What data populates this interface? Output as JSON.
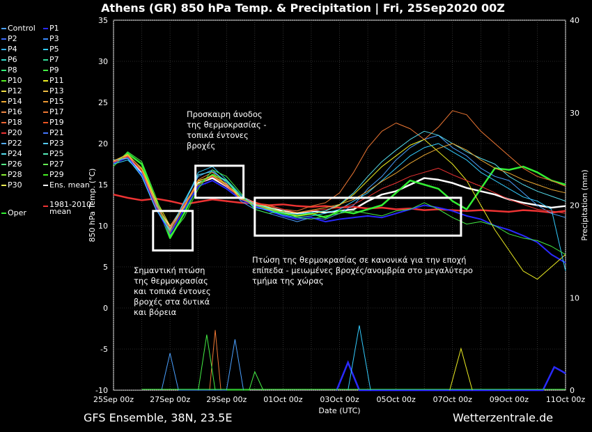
{
  "title": "Athens  (GR)  850 hPa Temp. & Precipitation | Fri, 25Sep2020 00Z",
  "footer": {
    "left": "GFS Ensemble, 38N, 23.5E",
    "right": "Wetterzentrale.de"
  },
  "legend": [
    {
      "label": "Control",
      "color": "#4aa0ff"
    },
    {
      "label": "P1",
      "color": "#2a2aff"
    },
    {
      "label": "P2",
      "color": "#3a6aff"
    },
    {
      "label": "P3",
      "color": "#3a8aff"
    },
    {
      "label": "P4",
      "color": "#33b3ff"
    },
    {
      "label": "P5",
      "color": "#33ccff"
    },
    {
      "label": "P6",
      "color": "#33ddcc"
    },
    {
      "label": "P7",
      "color": "#33dd99"
    },
    {
      "label": "P8",
      "color": "#33ee77"
    },
    {
      "label": "P9",
      "color": "#44ee44"
    },
    {
      "label": "P10",
      "color": "#55ee22"
    },
    {
      "label": "P11",
      "color": "#eeee22"
    },
    {
      "label": "P12",
      "color": "#eedd44"
    },
    {
      "label": "P13",
      "color": "#eebb44"
    },
    {
      "label": "P14",
      "color": "#eeaa33"
    },
    {
      "label": "P15",
      "color": "#ee9933"
    },
    {
      "label": "P16",
      "color": "#ee8844"
    },
    {
      "label": "P17",
      "color": "#ee7733"
    },
    {
      "label": "P18",
      "color": "#ee6633"
    },
    {
      "label": "P19",
      "color": "#ee5522"
    },
    {
      "label": "P20",
      "color": "#ee3333"
    },
    {
      "label": "P21",
      "color": "#4477ff"
    },
    {
      "label": "P22",
      "color": "#55aaff"
    },
    {
      "label": "P23",
      "color": "#55ccff"
    },
    {
      "label": "P24",
      "color": "#55ddee"
    },
    {
      "label": "P25",
      "color": "#55eebb"
    },
    {
      "label": "P26",
      "color": "#55ee88"
    },
    {
      "label": "P27",
      "color": "#66ee55"
    },
    {
      "label": "P28",
      "color": "#88ee33"
    },
    {
      "label": "P29",
      "color": "#44ee22"
    },
    {
      "label": "P30",
      "color": "#eeee55"
    },
    {
      "label": "Ens. mean",
      "color": "#ffffff"
    },
    {
      "label": "Oper",
      "color": "#33ee33"
    },
    {
      "label": "1981-2010\nmean",
      "color": "#ee3333"
    }
  ],
  "annotations": [
    "Προσκαιρη άνοδος\nτης θερμοκρασίας -\nτοπικά έντονες\nβροχές",
    "Σημαντική πτώση\nτης θερμοκρασίας\nκαι τοπικά έντονες\nβροχές στα δυτικά\nκαι βόρεια",
    "Πτώση της θερμοκρασίας σε κανονικά για την εποχή\nεπίπεδα - μειωμένες βροχές/ανομβρία στο μεγαλύτερο\nτμήμα της χώρας"
  ],
  "chart_data": {
    "type": "line",
    "ylabel": "850 hPa Temp. (°C)",
    "y2label": "Precipitation (mm)",
    "xlabel": "Date (UTC)",
    "ylim": [
      -10,
      35
    ],
    "y2lim": [
      0,
      40
    ],
    "yticks": [
      -10,
      -5,
      0,
      5,
      10,
      15,
      20,
      25,
      30,
      35
    ],
    "y2ticks": [
      0,
      10,
      20,
      30,
      40
    ],
    "x_range_days": [
      0,
      16
    ],
    "xticks": [
      {
        "day": 0,
        "label": "25Sep 00z"
      },
      {
        "day": 2,
        "label": "27Sep 00z"
      },
      {
        "day": 4,
        "label": "29Sep 00z"
      },
      {
        "day": 6,
        "label": "01Oct 00z"
      },
      {
        "day": 8,
        "label": "03Oct 00z"
      },
      {
        "day": 10,
        "label": "05Oct 00z"
      },
      {
        "day": 12,
        "label": "07Oct 00z"
      },
      {
        "day": 14,
        "label": "09Oct 00z"
      },
      {
        "day": 16,
        "label": "11Oct 00z"
      }
    ],
    "grid": true,
    "series": [
      {
        "name": "Ens. mean",
        "color": "#ffffff",
        "x": [
          0,
          0.5,
          1,
          1.5,
          2,
          2.5,
          3,
          3.5,
          4,
          4.5,
          5,
          5.5,
          6,
          6.5,
          7,
          7.5,
          8,
          8.5,
          9,
          9.5,
          10,
          10.5,
          11,
          11.5,
          12,
          12.5,
          13,
          13.5,
          14,
          14.5,
          15,
          15.5,
          16
        ],
        "y": [
          17.8,
          18.5,
          16.5,
          12.5,
          9.8,
          12.5,
          15.2,
          15.8,
          14.8,
          13.5,
          12.8,
          12.2,
          11.8,
          11.5,
          11.8,
          11.6,
          11.8,
          12.0,
          13.0,
          13.8,
          14.2,
          15.0,
          15.8,
          15.6,
          15.2,
          14.6,
          14.2,
          13.8,
          13.2,
          12.8,
          12.5,
          12.2,
          12.4
        ]
      },
      {
        "name": "1981-2010\nmean",
        "color": "#ee3333",
        "x": [
          0,
          0.5,
          1,
          1.5,
          2,
          2.5,
          3,
          3.5,
          4,
          4.5,
          5,
          5.5,
          6,
          6.5,
          7,
          7.5,
          8,
          8.5,
          9,
          9.5,
          10,
          10.5,
          11,
          11.5,
          12,
          12.5,
          13,
          13.5,
          14,
          14.5,
          15,
          15.5,
          16
        ],
        "y": [
          13.8,
          13.4,
          13.1,
          13.3,
          13.0,
          12.6,
          12.9,
          13.2,
          13.0,
          12.8,
          12.7,
          12.5,
          12.6,
          12.4,
          12.3,
          12.4,
          12.2,
          12.3,
          12.1,
          12.2,
          12.0,
          12.1,
          11.9,
          12.0,
          11.9,
          11.8,
          11.9,
          11.8,
          11.7,
          11.9,
          11.8,
          11.6,
          11.8
        ]
      },
      {
        "name": "Oper",
        "color": "#33ee33",
        "x": [
          0,
          0.5,
          1,
          1.5,
          2,
          2.5,
          3,
          3.5,
          4,
          4.5,
          5,
          5.5,
          6,
          6.5,
          7,
          7.5,
          8,
          8.5,
          9,
          9.5,
          10,
          10.5,
          11,
          11.5,
          12,
          12.5,
          13,
          13.5,
          14,
          14.5,
          15,
          15.5,
          16
        ],
        "y": [
          17.5,
          18.8,
          17.5,
          13.0,
          8.5,
          11.5,
          15.0,
          16.2,
          15.5,
          13.5,
          12.5,
          12.0,
          11.5,
          11.2,
          11.5,
          11.0,
          11.8,
          11.5,
          12.0,
          12.5,
          14.0,
          15.5,
          15.0,
          14.5,
          13.0,
          12.0,
          14.5,
          17.0,
          16.8,
          17.2,
          16.5,
          15.5,
          15.0
        ]
      },
      {
        "name": "Control",
        "color": "#4aa0ff",
        "x": [
          0,
          0.5,
          1,
          1.5,
          2,
          2.5,
          3,
          3.5,
          4,
          4.5,
          5,
          5.5,
          6,
          6.5,
          7,
          7.5,
          8,
          8.5,
          9,
          9.5,
          10,
          10.5,
          11,
          11.5,
          12,
          12.5,
          13,
          13.5,
          14,
          14.5,
          15,
          15.5,
          16
        ],
        "y": [
          17.8,
          18.2,
          16.0,
          12.0,
          9.5,
          12.8,
          16.0,
          16.8,
          15.2,
          13.0,
          12.0,
          11.5,
          11.0,
          10.5,
          11.0,
          10.8,
          11.5,
          12.5,
          14.5,
          16.0,
          18.0,
          19.5,
          20.5,
          21.0,
          19.5,
          18.5,
          17.0,
          16.0,
          15.5,
          14.0,
          12.5,
          11.5,
          11.0
        ]
      },
      {
        "name": "P1",
        "color": "#2a2aff",
        "x": [
          0,
          0.5,
          1,
          1.5,
          2,
          2.5,
          3,
          3.5,
          4,
          4.5,
          5,
          5.5,
          6,
          6.5,
          7,
          7.5,
          8,
          8.5,
          9,
          9.5,
          10,
          10.5,
          11,
          11.5,
          12,
          12.5,
          13,
          13.5,
          14,
          14.5,
          15,
          15.5,
          16
        ],
        "y": [
          17.6,
          18.3,
          16.2,
          12.2,
          9.0,
          12.0,
          14.8,
          15.5,
          14.5,
          13.2,
          12.4,
          11.8,
          11.2,
          10.8,
          11.0,
          10.5,
          10.8,
          11.0,
          11.2,
          11.0,
          11.5,
          12.0,
          12.5,
          12.2,
          11.8,
          11.2,
          10.8,
          10.0,
          9.5,
          8.8,
          8.0,
          6.5,
          5.5
        ]
      },
      {
        "name": "P11",
        "color": "#eeee22",
        "x": [
          0,
          0.5,
          1,
          1.5,
          2,
          2.5,
          3,
          3.5,
          4,
          4.5,
          5,
          5.5,
          6,
          6.5,
          7,
          7.5,
          8,
          8.5,
          9,
          9.5,
          10,
          10.5,
          11,
          11.5,
          12,
          12.5,
          13,
          13.5,
          14,
          14.5,
          15,
          15.5,
          16
        ],
        "y": [
          17.9,
          18.6,
          17.0,
          13.2,
          10.0,
          12.2,
          15.5,
          16.0,
          15.0,
          13.6,
          12.6,
          12.3,
          11.6,
          11.2,
          11.4,
          11.8,
          12.5,
          13.8,
          15.5,
          17.2,
          18.5,
          19.8,
          20.5,
          19.0,
          17.5,
          15.5,
          12.5,
          9.5,
          7.0,
          4.5,
          3.5,
          5.0,
          6.5
        ]
      },
      {
        "name": "P17",
        "color": "#ee7733",
        "x": [
          0,
          0.5,
          1,
          1.5,
          2,
          2.5,
          3,
          3.5,
          4,
          4.5,
          5,
          5.5,
          6,
          6.5,
          7,
          7.5,
          8,
          8.5,
          9,
          9.5,
          10,
          10.5,
          11,
          11.5,
          12,
          12.5,
          13,
          13.5,
          14,
          14.5,
          15,
          15.5,
          16
        ],
        "y": [
          17.7,
          18.4,
          16.8,
          12.8,
          9.2,
          12.4,
          15.6,
          16.5,
          15.0,
          13.2,
          12.8,
          12.5,
          12.0,
          11.8,
          12.4,
          12.8,
          14.0,
          16.5,
          19.5,
          21.5,
          22.5,
          21.8,
          20.5,
          22.0,
          24.0,
          23.5,
          21.5,
          20.0,
          18.5,
          17.0,
          16.0,
          15.5,
          14.8
        ]
      },
      {
        "name": "P5",
        "color": "#33ccff",
        "x": [
          0,
          0.5,
          1,
          1.5,
          2,
          2.5,
          3,
          3.5,
          4,
          4.5,
          5,
          5.5,
          6,
          6.5,
          7,
          7.5,
          8,
          8.5,
          9,
          9.5,
          10,
          10.5,
          11,
          11.5,
          12,
          12.5,
          13,
          13.5,
          14,
          14.5,
          15,
          15.5,
          16
        ],
        "y": [
          17.5,
          18.0,
          16.4,
          12.6,
          9.6,
          12.6,
          16.5,
          17.2,
          15.6,
          13.8,
          12.2,
          11.9,
          11.3,
          11.0,
          11.2,
          11.5,
          12.0,
          13.0,
          14.0,
          15.5,
          17.0,
          18.5,
          19.5,
          20.0,
          19.0,
          18.0,
          16.5,
          15.5,
          14.5,
          13.5,
          13.0,
          12.0,
          4.5
        ]
      },
      {
        "name": "P20",
        "color": "#ee3333",
        "x": [
          0,
          0.5,
          1,
          1.5,
          2,
          2.5,
          3,
          3.5,
          4,
          4.5,
          5,
          5.5,
          6,
          6.5,
          7,
          7.5,
          8,
          8.5,
          9,
          9.5,
          10,
          10.5,
          11,
          11.5,
          12,
          12.5,
          13,
          13.5,
          14,
          14.5,
          15,
          15.5,
          16
        ],
        "y": [
          17.8,
          18.5,
          16.6,
          12.4,
          9.8,
          12.6,
          15.0,
          16.0,
          14.8,
          13.4,
          12.9,
          12.4,
          12.0,
          11.6,
          11.8,
          12.0,
          12.2,
          12.6,
          13.5,
          14.5,
          15.2,
          16.0,
          16.5,
          17.0,
          16.2,
          15.5,
          14.8,
          14.0,
          13.2,
          12.6,
          12.0,
          11.8,
          11.5
        ]
      },
      {
        "name": "P9",
        "color": "#44ee44",
        "x": [
          0,
          0.5,
          1,
          1.5,
          2,
          2.5,
          3,
          3.5,
          4,
          4.5,
          5,
          5.5,
          6,
          6.5,
          7,
          7.5,
          8,
          8.5,
          9,
          9.5,
          10,
          10.5,
          11,
          11.5,
          12,
          12.5,
          13,
          13.5,
          14,
          14.5,
          15,
          15.5,
          16
        ],
        "y": [
          17.2,
          19.0,
          17.8,
          13.5,
          8.8,
          11.0,
          14.5,
          16.8,
          16.0,
          14.0,
          12.0,
          11.5,
          11.8,
          11.0,
          10.8,
          11.2,
          11.5,
          11.8,
          11.5,
          11.2,
          11.8,
          12.0,
          12.8,
          12.0,
          11.0,
          10.2,
          10.5,
          10.0,
          9.0,
          8.5,
          8.2,
          7.5,
          6.5
        ]
      },
      {
        "name": "P24",
        "color": "#55ddee",
        "x": [
          0,
          0.5,
          1,
          1.5,
          2,
          2.5,
          3,
          3.5,
          4,
          4.5,
          5,
          5.5,
          6,
          6.5,
          7,
          7.5,
          8,
          8.5,
          9,
          9.5,
          10,
          10.5,
          11,
          11.5,
          12,
          12.5,
          13,
          13.5,
          14,
          14.5,
          15,
          15.5,
          16
        ],
        "y": [
          18.0,
          18.2,
          16.0,
          12.0,
          9.4,
          13.0,
          16.2,
          16.6,
          15.4,
          13.6,
          12.6,
          12.2,
          11.6,
          11.4,
          11.6,
          11.8,
          12.6,
          14.0,
          16.0,
          17.8,
          19.2,
          20.5,
          21.5,
          21.0,
          20.0,
          19.0,
          18.2,
          17.5,
          16.0,
          15.0,
          14.2,
          13.6,
          13.0
        ]
      },
      {
        "name": "P14",
        "color": "#eeaa33",
        "x": [
          0,
          0.5,
          1,
          1.5,
          2,
          2.5,
          3,
          3.5,
          4,
          4.5,
          5,
          5.5,
          6,
          6.5,
          7,
          7.5,
          8,
          8.5,
          9,
          9.5,
          10,
          10.5,
          11,
          11.5,
          12,
          12.5,
          13,
          13.5,
          14,
          14.5,
          15,
          15.5,
          16
        ],
        "y": [
          17.9,
          18.7,
          16.9,
          12.9,
          9.6,
          12.3,
          15.4,
          16.1,
          15.1,
          13.3,
          12.5,
          12.0,
          11.7,
          11.6,
          11.9,
          12.2,
          12.6,
          13.2,
          14.2,
          15.4,
          16.4,
          17.6,
          18.6,
          19.4,
          20.0,
          19.2,
          18.0,
          17.0,
          16.4,
          15.6,
          15.0,
          14.4,
          14.0
        ]
      }
    ],
    "precip_series": [
      {
        "name": "P1",
        "color": "#2a2aff",
        "x": [
          7.9,
          8.3,
          8.7,
          15.2,
          15.6,
          15.9,
          16.0
        ],
        "y": [
          0,
          3.0,
          0,
          0,
          2.5,
          2.0,
          1.8
        ]
      },
      {
        "name": "P5",
        "color": "#33ccff",
        "x": [
          8.3,
          8.7,
          9.1
        ],
        "y": [
          0,
          7.0,
          0
        ]
      },
      {
        "name": "P17",
        "color": "#ee7733",
        "x": [
          3.4,
          3.6,
          3.8
        ],
        "y": [
          0,
          6.5,
          0
        ]
      },
      {
        "name": "P11",
        "color": "#eeee22",
        "x": [
          11.9,
          12.3,
          12.7
        ],
        "y": [
          0,
          4.5,
          0
        ]
      },
      {
        "name": "P9",
        "color": "#44ee44",
        "x": [
          3.0,
          3.3,
          3.6,
          4.8,
          5.0,
          5.3
        ],
        "y": [
          0,
          6.0,
          0,
          0,
          2.0,
          0
        ]
      },
      {
        "name": "Control",
        "color": "#4aa0ff",
        "x": [
          1.7,
          2.0,
          2.3,
          4.0,
          4.3,
          4.6
        ],
        "y": [
          0,
          4.0,
          0,
          0,
          5.5,
          0
        ]
      }
    ]
  }
}
